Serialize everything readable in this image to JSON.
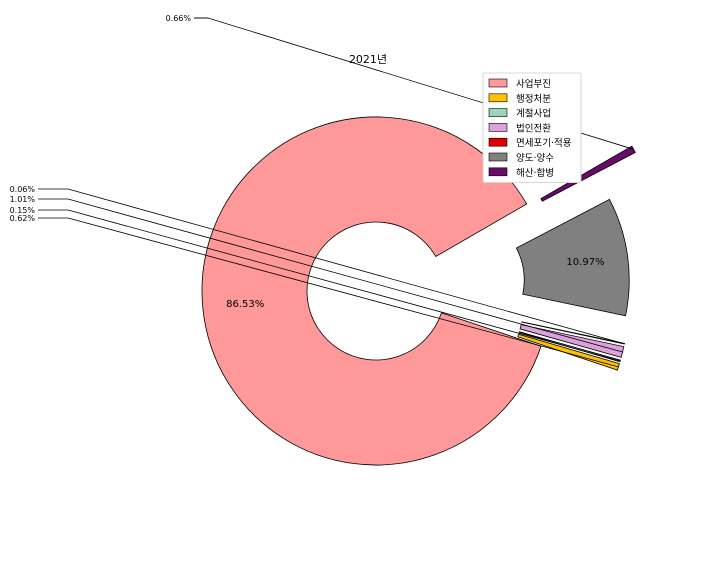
{
  "chart_data": {
    "type": "pie",
    "variant": "donut-exploded",
    "title": "2021년",
    "legend_position": "top-right",
    "slices": [
      {
        "label": "사업부진",
        "value": 86.53,
        "pct_label": "86.53%",
        "color": "#ff9999"
      },
      {
        "label": "행정처분",
        "value": 0.62,
        "pct_label": "0.62%",
        "color": "#ffc000"
      },
      {
        "label": "계절사업",
        "value": 0.15,
        "pct_label": "0.15%",
        "color": "#99d6b8"
      },
      {
        "label": "법인전환",
        "value": 1.01,
        "pct_label": "1.01%",
        "color": "#dda0dd"
      },
      {
        "label": "면세포기·적용",
        "value": 0.06,
        "pct_label": "0.06%",
        "color": "#e00000"
      },
      {
        "label": "양도·양수",
        "value": 10.97,
        "pct_label": "10.97%",
        "color": "#808080"
      },
      {
        "label": "해산·합병",
        "value": 0.66,
        "pct_label": "0.66%",
        "color": "#6a0a6a"
      }
    ]
  }
}
